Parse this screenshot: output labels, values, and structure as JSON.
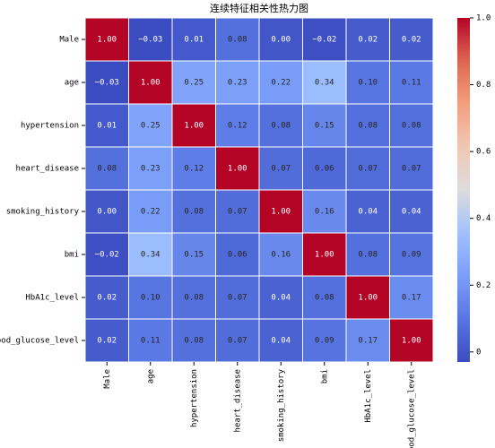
{
  "chart_data": {
    "type": "heatmap",
    "title": "连续特征相关性热力图",
    "x_categories": [
      "Male",
      "age",
      "hypertension",
      "heart_disease",
      "smoking_history",
      "bmi",
      "HbA1c_level",
      "blood_glucose_level"
    ],
    "y_categories": [
      "Male",
      "age",
      "hypertension",
      "heart_disease",
      "smoking_history",
      "bmi",
      "HbA1c_level",
      "blood_glucose_level"
    ],
    "values": [
      [
        1.0,
        -0.03,
        0.01,
        0.08,
        0.0,
        -0.02,
        0.02,
        0.02
      ],
      [
        -0.03,
        1.0,
        0.25,
        0.23,
        0.22,
        0.34,
        0.1,
        0.11
      ],
      [
        0.01,
        0.25,
        1.0,
        0.12,
        0.08,
        0.15,
        0.08,
        0.08
      ],
      [
        0.08,
        0.23,
        0.12,
        1.0,
        0.07,
        0.06,
        0.07,
        0.07
      ],
      [
        0.0,
        0.22,
        0.08,
        0.07,
        1.0,
        0.16,
        0.04,
        0.04
      ],
      [
        -0.02,
        0.34,
        0.15,
        0.06,
        0.16,
        1.0,
        0.08,
        0.09
      ],
      [
        0.02,
        0.1,
        0.08,
        0.07,
        0.04,
        0.08,
        1.0,
        0.17
      ],
      [
        0.02,
        0.11,
        0.08,
        0.07,
        0.04,
        0.09,
        0.17,
        1.0
      ]
    ],
    "value_labels": [
      [
        "1.00",
        "−0.03",
        "0.01",
        "0.08",
        "0.00",
        "−0.02",
        "0.02",
        "0.02"
      ],
      [
        "−0.03",
        "1.00",
        "0.25",
        "0.23",
        "0.22",
        "0.34",
        "0.10",
        "0.11"
      ],
      [
        "0.01",
        "0.25",
        "1.00",
        "0.12",
        "0.08",
        "0.15",
        "0.08",
        "0.08"
      ],
      [
        "0.08",
        "0.23",
        "0.12",
        "1.00",
        "0.07",
        "0.06",
        "0.07",
        "0.07"
      ],
      [
        "0.00",
        "0.22",
        "0.08",
        "0.07",
        "1.00",
        "0.16",
        "0.04",
        "0.04"
      ],
      [
        "−0.02",
        "0.34",
        "0.15",
        "0.06",
        "0.16",
        "1.00",
        "0.08",
        "0.09"
      ],
      [
        "0.02",
        "0.10",
        "0.08",
        "0.07",
        "0.04",
        "0.08",
        "1.00",
        "0.17"
      ],
      [
        "0.02",
        "0.11",
        "0.08",
        "0.07",
        "0.04",
        "0.09",
        "0.17",
        "1.00"
      ]
    ],
    "colormap": "coolwarm",
    "zlim": [
      -0.03,
      1
    ],
    "zticks": [
      0,
      0.2,
      0.4,
      0.6,
      0.8,
      {
        "value": 1,
        "label": "1.0"
      }
    ]
  }
}
